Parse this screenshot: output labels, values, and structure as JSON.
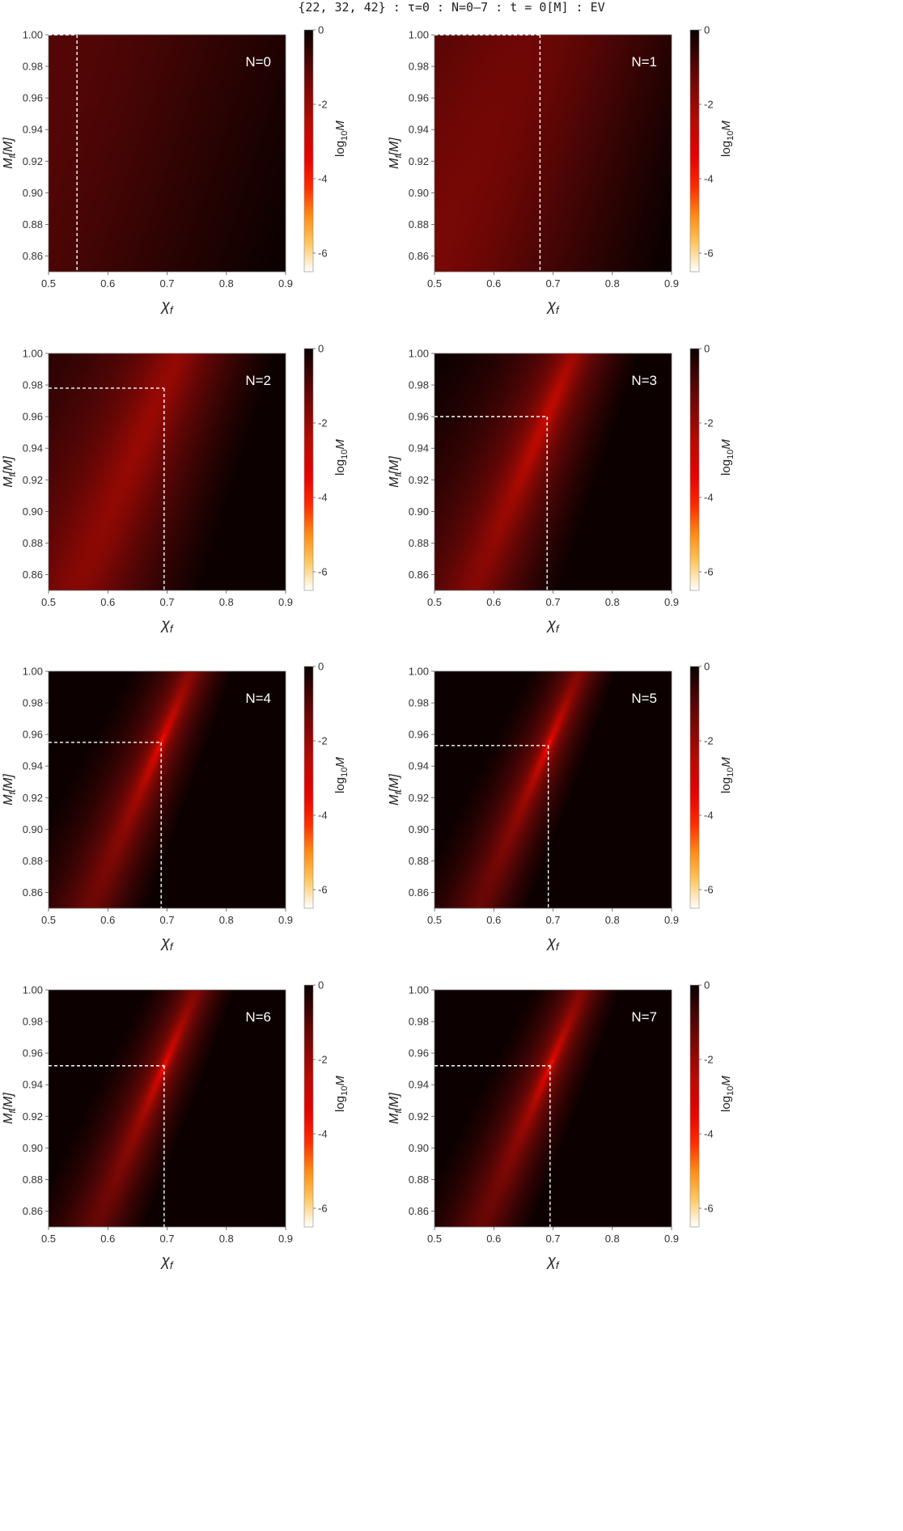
{
  "figure": {
    "title": "{22, 32, 42} : τ=0 : N=0–7 : t = 0[M] : EV"
  },
  "chart_data": [
    {
      "type": "heatmap",
      "label": "N=0",
      "x_axis": {
        "label": "χf",
        "range": [
          0.5,
          0.9
        ],
        "ticks": [
          "0.5",
          "0.6",
          "0.7",
          "0.8",
          "0.9"
        ]
      },
      "y_axis": {
        "label": "Mf[M]",
        "range": [
          0.85,
          1.0
        ],
        "ticks": [
          "0.86",
          "0.88",
          "0.90",
          "0.92",
          "0.94",
          "0.96",
          "0.98",
          "1.00"
        ]
      },
      "colorbar": {
        "label": "log10M",
        "range": [
          -6.5,
          0
        ],
        "ticks": [
          "0",
          "-2",
          "-4",
          "-6"
        ]
      },
      "best_fit": {
        "chi_f": 0.548,
        "M_f": 1.0
      },
      "min_log10": -1.0,
      "valley_sharpness": 1,
      "gradient_right": 0.35
    },
    {
      "type": "heatmap",
      "label": "N=1",
      "x_axis": {
        "label": "χf",
        "range": [
          0.5,
          0.9
        ],
        "ticks": [
          "0.5",
          "0.6",
          "0.7",
          "0.8",
          "0.9"
        ]
      },
      "y_axis": {
        "label": "Mf[M]",
        "range": [
          0.85,
          1.0
        ],
        "ticks": [
          "0.86",
          "0.88",
          "0.90",
          "0.92",
          "0.94",
          "0.96",
          "0.98",
          "1.00"
        ]
      },
      "colorbar": {
        "label": "log10M",
        "range": [
          -6.5,
          0
        ],
        "ticks": [
          "0",
          "-2",
          "-4",
          "-6"
        ]
      },
      "best_fit": {
        "chi_f": 0.678,
        "M_f": 1.0
      },
      "min_log10": -1.6,
      "valley_sharpness": 1,
      "gradient_right": 0.9
    },
    {
      "type": "heatmap",
      "label": "N=2",
      "x_axis": {
        "label": "χf",
        "range": [
          0.5,
          0.9
        ],
        "ticks": [
          "0.5",
          "0.6",
          "0.7",
          "0.8",
          "0.9"
        ]
      },
      "y_axis": {
        "label": "Mf[M]",
        "range": [
          0.85,
          1.0
        ],
        "ticks": [
          "0.86",
          "0.88",
          "0.90",
          "0.92",
          "0.94",
          "0.96",
          "0.98",
          "1.00"
        ]
      },
      "colorbar": {
        "label": "log10M",
        "range": [
          -6.5,
          0
        ],
        "ticks": [
          "0",
          "-2",
          "-4",
          "-6"
        ]
      },
      "best_fit": {
        "chi_f": 0.695,
        "M_f": 0.978
      },
      "min_log10": -2.3,
      "valley_sharpness": 2,
      "gradient_right": 1.1
    },
    {
      "type": "heatmap",
      "label": "N=3",
      "x_axis": {
        "label": "χf",
        "range": [
          0.5,
          0.9
        ],
        "ticks": [
          "0.5",
          "0.6",
          "0.7",
          "0.8",
          "0.9"
        ]
      },
      "y_axis": {
        "label": "Mf[M]",
        "range": [
          0.85,
          1.0
        ],
        "ticks": [
          "0.86",
          "0.88",
          "0.90",
          "0.92",
          "0.94",
          "0.96",
          "0.98",
          "1.00"
        ]
      },
      "colorbar": {
        "label": "log10M",
        "range": [
          -6.5,
          0
        ],
        "ticks": [
          "0",
          "-2",
          "-4",
          "-6"
        ]
      },
      "best_fit": {
        "chi_f": 0.69,
        "M_f": 0.96
      },
      "min_log10": -3.0,
      "valley_sharpness": 3,
      "gradient_right": 1.2
    },
    {
      "type": "heatmap",
      "label": "N=4",
      "x_axis": {
        "label": "χf",
        "range": [
          0.5,
          0.9
        ],
        "ticks": [
          "0.5",
          "0.6",
          "0.7",
          "0.8",
          "0.9"
        ]
      },
      "y_axis": {
        "label": "Mf[M]",
        "range": [
          0.85,
          1.0
        ],
        "ticks": [
          "0.86",
          "0.88",
          "0.90",
          "0.92",
          "0.94",
          "0.96",
          "0.98",
          "1.00"
        ]
      },
      "colorbar": {
        "label": "log10M",
        "range": [
          -6.5,
          0
        ],
        "ticks": [
          "0",
          "-2",
          "-4",
          "-6"
        ]
      },
      "best_fit": {
        "chi_f": 0.69,
        "M_f": 0.955
      },
      "min_log10": -4.6,
      "valley_sharpness": 5,
      "gradient_right": 1.2
    },
    {
      "type": "heatmap",
      "label": "N=5",
      "x_axis": {
        "label": "χf",
        "range": [
          0.5,
          0.9
        ],
        "ticks": [
          "0.5",
          "0.6",
          "0.7",
          "0.8",
          "0.9"
        ]
      },
      "y_axis": {
        "label": "Mf[M]",
        "range": [
          0.85,
          1.0
        ],
        "ticks": [
          "0.86",
          "0.88",
          "0.90",
          "0.92",
          "0.94",
          "0.96",
          "0.98",
          "1.00"
        ]
      },
      "colorbar": {
        "label": "log10M",
        "range": [
          -6.5,
          0
        ],
        "ticks": [
          "0",
          "-2",
          "-4",
          "-6"
        ]
      },
      "best_fit": {
        "chi_f": 0.692,
        "M_f": 0.953
      },
      "min_log10": -5.0,
      "valley_sharpness": 6,
      "gradient_right": 1.1
    },
    {
      "type": "heatmap",
      "label": "N=6",
      "x_axis": {
        "label": "χf",
        "range": [
          0.5,
          0.9
        ],
        "ticks": [
          "0.5",
          "0.6",
          "0.7",
          "0.8",
          "0.9"
        ]
      },
      "y_axis": {
        "label": "Mf[M]",
        "range": [
          0.85,
          1.0
        ],
        "ticks": [
          "0.86",
          "0.88",
          "0.90",
          "0.92",
          "0.94",
          "0.96",
          "0.98",
          "1.00"
        ]
      },
      "colorbar": {
        "label": "log10M",
        "range": [
          -6.5,
          0
        ],
        "ticks": [
          "0",
          "-2",
          "-4",
          "-6"
        ]
      },
      "best_fit": {
        "chi_f": 0.695,
        "M_f": 0.952
      },
      "min_log10": -5.4,
      "valley_sharpness": 6,
      "gradient_right": 1.0
    },
    {
      "type": "heatmap",
      "label": "N=7",
      "x_axis": {
        "label": "χf",
        "range": [
          0.5,
          0.9
        ],
        "ticks": [
          "0.5",
          "0.6",
          "0.7",
          "0.8",
          "0.9"
        ]
      },
      "y_axis": {
        "label": "Mf[M]",
        "range": [
          0.85,
          1.0
        ],
        "ticks": [
          "0.86",
          "0.88",
          "0.90",
          "0.92",
          "0.94",
          "0.96",
          "0.98",
          "1.00"
        ]
      },
      "colorbar": {
        "label": "log10M",
        "range": [
          -6.5,
          0
        ],
        "ticks": [
          "0",
          "-2",
          "-4",
          "-6"
        ]
      },
      "best_fit": {
        "chi_f": 0.695,
        "M_f": 0.952
      },
      "min_log10": -5.4,
      "valley_sharpness": 6,
      "gradient_right": 1.0
    }
  ]
}
